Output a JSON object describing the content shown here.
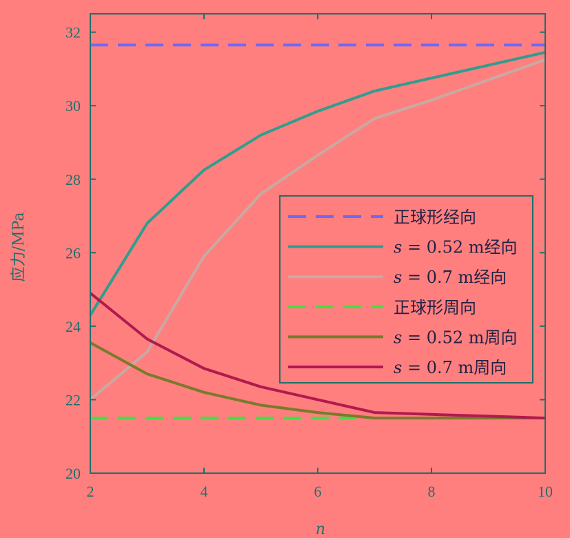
{
  "chart_data": {
    "type": "line",
    "xlabel": "n",
    "ylabel": "应力/MPa",
    "xlim": [
      2,
      10
    ],
    "ylim": [
      20,
      32.5
    ],
    "xticks": [
      2,
      4,
      6,
      8,
      10
    ],
    "yticks": [
      20,
      22,
      24,
      26,
      28,
      30,
      32
    ],
    "grid": false,
    "legend_position": "center-right",
    "series": [
      {
        "name": "正球形经向",
        "style": "dashed",
        "color": "#6a6aff",
        "x": [
          2,
          10
        ],
        "y": [
          31.65,
          31.65
        ]
      },
      {
        "name": "s = 0.52 m经向",
        "style": "solid",
        "color": "#2e9e8e",
        "x": [
          2,
          3,
          4,
          5,
          6,
          7,
          8,
          9,
          10
        ],
        "y": [
          24.3,
          26.8,
          28.25,
          29.2,
          29.85,
          30.4,
          30.75,
          31.1,
          31.45
        ]
      },
      {
        "name": "s = 0.7 m经向",
        "style": "solid",
        "color": "#c9a9a2",
        "x": [
          2,
          3,
          4,
          5,
          6,
          7,
          8,
          9,
          10
        ],
        "y": [
          22.0,
          23.3,
          25.9,
          27.6,
          28.65,
          29.65,
          30.15,
          30.7,
          31.25
        ]
      },
      {
        "name": "正球形周向",
        "style": "dashed",
        "color": "#44dd44",
        "x": [
          2,
          6.7
        ],
        "y": [
          21.5,
          21.5
        ]
      },
      {
        "name": "s = 0.52 m周向",
        "style": "solid",
        "color": "#7a7a2a",
        "x": [
          2,
          3,
          4,
          5,
          6,
          7,
          8,
          9,
          10
        ],
        "y": [
          23.55,
          22.7,
          22.2,
          21.85,
          21.65,
          21.5,
          21.5,
          21.5,
          21.5
        ]
      },
      {
        "name": "s = 0.7 m周向",
        "style": "solid",
        "color": "#b01a4e",
        "x": [
          2,
          3,
          4,
          5,
          6,
          7,
          8,
          9,
          10
        ],
        "y": [
          24.9,
          23.65,
          22.85,
          22.35,
          22.0,
          21.65,
          21.6,
          21.55,
          21.5
        ]
      }
    ]
  }
}
